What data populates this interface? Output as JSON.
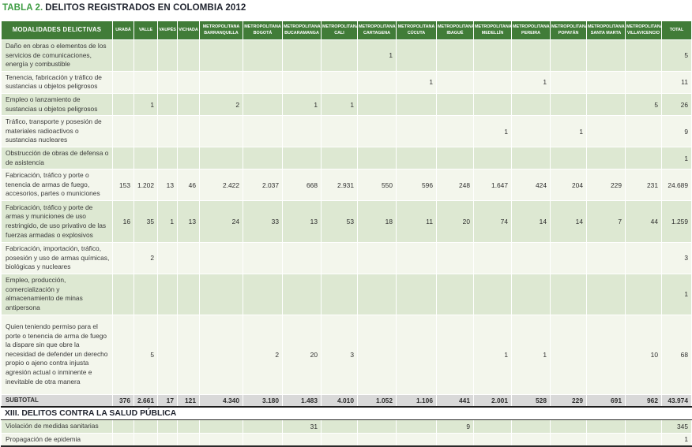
{
  "title": {
    "prefix": "TABLA 2.",
    "main": "DELITOS REGISTRADOS EN COLOMBIA 2012"
  },
  "colors": {
    "header_green": "#417c38",
    "row_green": "#dde8d2",
    "row_light": "#f3f6ec",
    "subtotal_gray": "#d9d9d9",
    "title_green": "#3f9d44",
    "title_dark": "#20242f"
  },
  "table": {
    "header": {
      "label_col": "MODALIDADES DELICTIVAS",
      "region_cols": [
        "URABÁ",
        "VALLE",
        "VAUPÉS",
        "VICHADA",
        "METROPOLITANA BARRANQUILLA",
        "METROPOLITANA BOGOTÁ",
        "METROPOLITANA BUCARAMANGA",
        "METROPOLITANA CALI",
        "METROPOLITANA CARTAGENA",
        "METROPOLITANA CÚCUTA",
        "METROPOLITANA IBAGUÉ",
        "METROPOLITANA MEDELLÍN",
        "METROPOLITANA PEREIRA",
        "METROPOLITANA POPAYÁN",
        "METROPOLITANA SANTA MARTA",
        "METROPOLITANA VILLAVICENCIO",
        "TOTAL"
      ]
    },
    "rows": [
      {
        "label": "Daño en obras o elementos de los servicios de comunicaciones, energía y combustible",
        "values": [
          "",
          "",
          "",
          "",
          "",
          "",
          "",
          "",
          "1",
          "",
          "",
          "",
          "",
          "",
          "",
          "",
          "5"
        ]
      },
      {
        "label": "Tenencia, fabricación y tráfico de sustancias u objetos peligrosos",
        "values": [
          "",
          "",
          "",
          "",
          "",
          "",
          "",
          "",
          "",
          "1",
          "",
          "",
          "1",
          "",
          "",
          "",
          "11"
        ]
      },
      {
        "label": "Empleo o lanzamiento de sustancias u objetos peligrosos",
        "values": [
          "",
          "1",
          "",
          "",
          "2",
          "",
          "1",
          "1",
          "",
          "",
          "",
          "",
          "",
          "",
          "",
          "5",
          "26"
        ]
      },
      {
        "label": "Tráfico, transporte y posesión de materiales radioactivos o sustancias nucleares",
        "values": [
          "",
          "",
          "",
          "",
          "",
          "",
          "",
          "",
          "",
          "",
          "",
          "1",
          "",
          "1",
          "",
          "",
          "9"
        ]
      },
      {
        "label": "Obstrucción de obras de defensa o de asistencia",
        "values": [
          "",
          "",
          "",
          "",
          "",
          "",
          "",
          "",
          "",
          "",
          "",
          "",
          "",
          "",
          "",
          "",
          "1"
        ]
      },
      {
        "label": "Fabricación, tráfico y porte o tenencia de armas de fuego, accesorios, partes o municiones",
        "values": [
          "153",
          "1.202",
          "13",
          "46",
          "2.422",
          "2.037",
          "668",
          "2.931",
          "550",
          "596",
          "248",
          "1.647",
          "424",
          "204",
          "229",
          "231",
          "24.689"
        ]
      },
      {
        "label": "Fabricación, tráfico y porte de armas y municiones de uso restringido, de uso privativo de las fuerzas armadas o explosivos",
        "values": [
          "16",
          "35",
          "1",
          "13",
          "24",
          "33",
          "13",
          "53",
          "18",
          "11",
          "20",
          "74",
          "14",
          "14",
          "7",
          "44",
          "1.259"
        ]
      },
      {
        "label": "Fabricación, importación, tráfico, posesión y uso de armas químicas, biológicas y nucleares",
        "values": [
          "",
          "2",
          "",
          "",
          "",
          "",
          "",
          "",
          "",
          "",
          "",
          "",
          "",
          "",
          "",
          "",
          "3"
        ]
      },
      {
        "label": "Empleo, producción, comercialización y almacenamiento de minas antipersona",
        "values": [
          "",
          "",
          "",
          "",
          "",
          "",
          "",
          "",
          "",
          "",
          "",
          "",
          "",
          "",
          "",
          "",
          "1"
        ]
      },
      {
        "label": "Quien teniendo permiso para el porte o tenencia de arma de fuego la dispare sin que obre la necesidad de defender un derecho propio o ajeno contra injusta agresión actual o inminente e inevitable de otra manera",
        "values": [
          "",
          "5",
          "",
          "",
          "",
          "2",
          "20",
          "3",
          "",
          "",
          "",
          "1",
          "1",
          "",
          "",
          "10",
          "68"
        ]
      }
    ],
    "subtotal_row": {
      "label": "SUBTOTAL",
      "values": [
        "376",
        "2.661",
        "17",
        "121",
        "4.340",
        "3.180",
        "1.483",
        "4.010",
        "1.052",
        "1.106",
        "441",
        "2.001",
        "528",
        "229",
        "691",
        "962",
        "43.974"
      ]
    },
    "section_header": "XIII. DELITOS CONTRA LA SALUD PÚBLICA",
    "section_rows": [
      {
        "label": "Violación de medidas sanitarias",
        "values": [
          "",
          "",
          "",
          "",
          "",
          "",
          "31",
          "",
          "",
          "",
          "9",
          "",
          "",
          "",
          "",
          "",
          "345"
        ]
      },
      {
        "label": "Propagación de epidemia",
        "values": [
          "",
          "",
          "",
          "",
          "",
          "",
          "",
          "",
          "",
          "",
          "",
          "",
          "",
          "",
          "",
          "",
          "1"
        ]
      }
    ]
  }
}
